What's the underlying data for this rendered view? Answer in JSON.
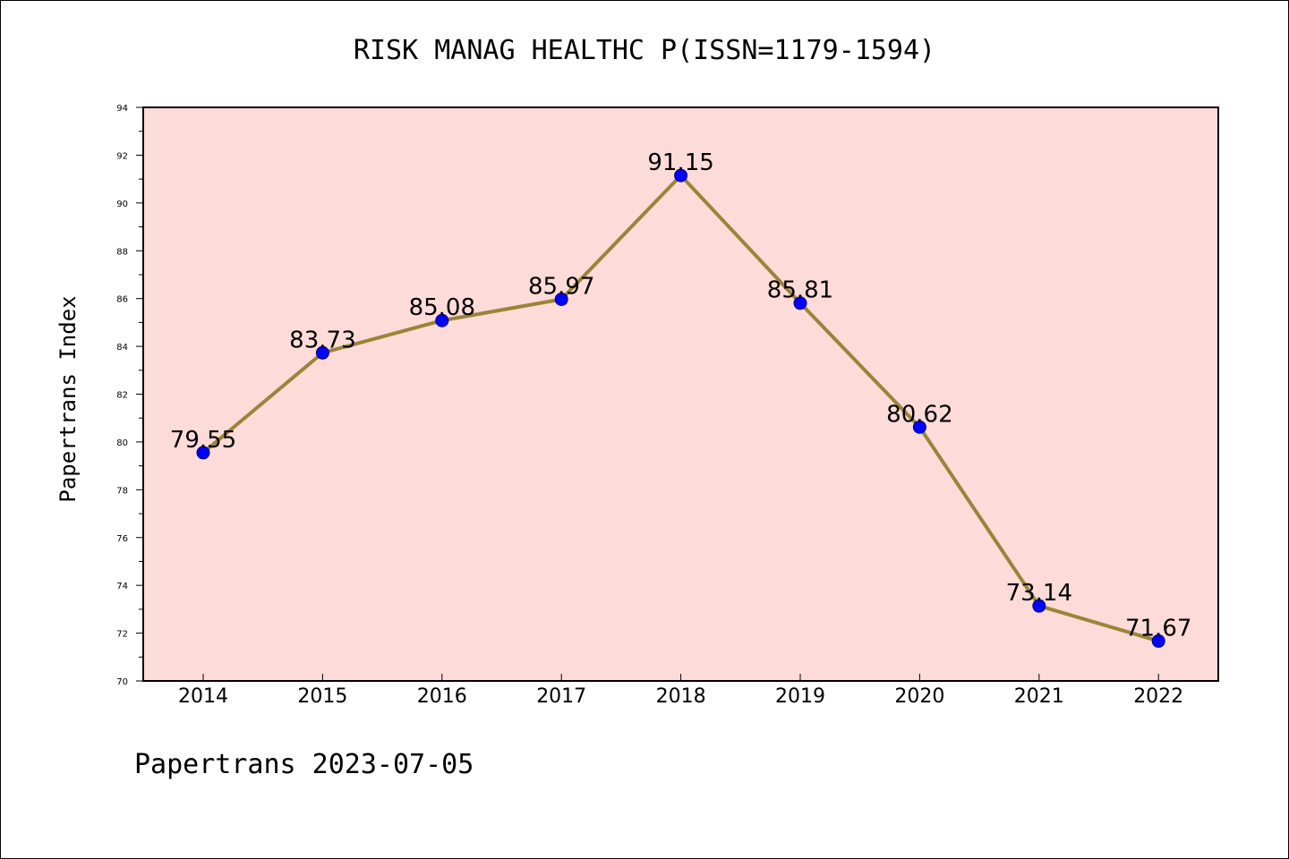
{
  "chart_data": {
    "type": "line",
    "title": "RISK MANAG HEALTHC P(ISSN=1179-1594)",
    "ylabel": "Papertrans Index",
    "xlabel": "",
    "x": [
      "2014",
      "2015",
      "2016",
      "2017",
      "2018",
      "2019",
      "2020",
      "2021",
      "2022"
    ],
    "series": [
      {
        "values": [
          79.55,
          83.73,
          85.08,
          85.97,
          91.15,
          85.81,
          80.62,
          73.14,
          71.67
        ],
        "labels": [
          "79.55",
          "83.73",
          "85.08",
          "85.97",
          "91.15",
          "85.81",
          "80.62",
          "73.14",
          "71.67"
        ]
      }
    ],
    "ylim": [
      70,
      94
    ],
    "yticks": [
      70,
      72,
      74,
      76,
      78,
      80,
      82,
      84,
      86,
      88,
      90,
      92,
      94
    ],
    "grid": false,
    "colors": {
      "plot_background": "#fddbd8",
      "line": "#9b8438",
      "marker": "#0000ff"
    }
  },
  "footer": "Papertrans 2023-07-05"
}
